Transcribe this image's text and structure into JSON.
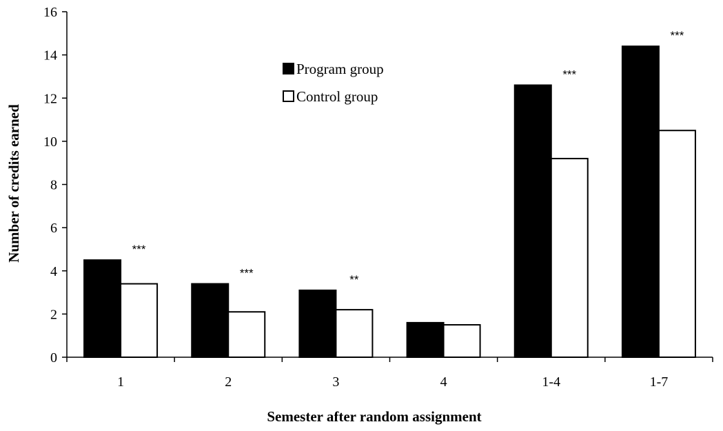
{
  "chart_data": {
    "type": "bar",
    "title": "",
    "xlabel": "Semester after random assignment",
    "ylabel": "Number of credits earned",
    "categories": [
      "1",
      "2",
      "3",
      "4",
      "1-4",
      "1-7"
    ],
    "series": [
      {
        "name": "Program group",
        "values": [
          4.5,
          3.4,
          3.1,
          1.6,
          12.6,
          14.4
        ],
        "color": "#000000"
      },
      {
        "name": "Control group",
        "values": [
          3.4,
          2.1,
          2.2,
          1.5,
          9.2,
          10.5
        ],
        "color": "#ffffff"
      }
    ],
    "significance": [
      "***",
      "***",
      "**",
      "",
      "***",
      "***"
    ],
    "ylim": [
      0,
      16
    ],
    "yticks": [
      "0",
      "2",
      "4",
      "6",
      "8",
      "10",
      "12",
      "14",
      "16"
    ],
    "grid": false,
    "legend_position": "top-center"
  }
}
